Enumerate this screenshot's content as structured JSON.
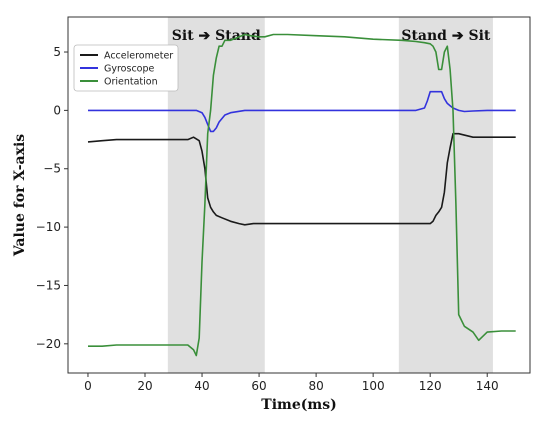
{
  "chart_data": {
    "type": "line",
    "xlabel": "Time(ms)",
    "ylabel": "Value for X-axis",
    "xlim": [
      -7,
      155
    ],
    "ylim": [
      -22.5,
      8
    ],
    "xticks": [
      0,
      20,
      40,
      60,
      80,
      100,
      120,
      140
    ],
    "yticks": [
      5,
      0,
      -5,
      -10,
      -15,
      -20
    ],
    "grid": false,
    "legend_position": "top-left",
    "colors": {
      "band": "#e0e0e0",
      "frame": "#333333"
    },
    "bands": [
      {
        "label": "Sit ➔ Stand",
        "x": [
          28,
          62
        ]
      },
      {
        "label": "Stand ➔ Sit",
        "x": [
          109,
          142
        ]
      }
    ],
    "series": [
      {
        "name": "Accelerometer",
        "color": "#1a1a1a",
        "x": [
          0,
          5,
          10,
          15,
          20,
          25,
          30,
          35,
          37,
          39,
          40,
          41,
          42,
          43,
          44,
          45,
          47,
          50,
          53,
          55,
          58,
          62,
          70,
          80,
          90,
          100,
          110,
          115,
          120,
          121,
          122,
          123,
          124,
          125,
          126,
          127,
          128,
          130,
          135,
          140,
          145,
          150
        ],
        "y": [
          -2.7,
          -2.6,
          -2.5,
          -2.5,
          -2.5,
          -2.5,
          -2.5,
          -2.5,
          -2.3,
          -2.6,
          -3.5,
          -5.0,
          -7.5,
          -8.3,
          -8.7,
          -9.0,
          -9.2,
          -9.5,
          -9.7,
          -9.8,
          -9.7,
          -9.7,
          -9.7,
          -9.7,
          -9.7,
          -9.7,
          -9.7,
          -9.7,
          -9.7,
          -9.5,
          -9.0,
          -8.7,
          -8.3,
          -7.0,
          -4.5,
          -3.2,
          -2.0,
          -2.0,
          -2.3,
          -2.3,
          -2.3,
          -2.3
        ]
      },
      {
        "name": "Gyroscope",
        "color": "#3333dd",
        "x": [
          0,
          10,
          20,
          30,
          38,
          40,
          41,
          42,
          43,
          44,
          45,
          46,
          48,
          50,
          55,
          62,
          80,
          100,
          110,
          115,
          118,
          119,
          120,
          122,
          124,
          125,
          126,
          127,
          128,
          130,
          132,
          135,
          140,
          150
        ],
        "y": [
          0,
          0,
          0,
          0,
          0,
          -0.2,
          -0.6,
          -1.2,
          -1.8,
          -1.8,
          -1.5,
          -1.0,
          -0.4,
          -0.2,
          0,
          0,
          0,
          0,
          0,
          0,
          0.2,
          0.8,
          1.6,
          1.6,
          1.6,
          1.0,
          0.6,
          0.4,
          0.2,
          0,
          -0.1,
          -0.05,
          0,
          0
        ]
      },
      {
        "name": "Orientation",
        "color": "#3a8f3a",
        "x": [
          0,
          5,
          10,
          20,
          30,
          35,
          37,
          38,
          39,
          40,
          41,
          42,
          43,
          44,
          45,
          46,
          47,
          48,
          50,
          52,
          55,
          57,
          60,
          62,
          65,
          70,
          80,
          90,
          100,
          110,
          115,
          118,
          120,
          121,
          122,
          123,
          124,
          125,
          126,
          127,
          128,
          129,
          130,
          132,
          135,
          137,
          140,
          145,
          150
        ],
        "y": [
          -20.2,
          -20.2,
          -20.1,
          -20.1,
          -20.1,
          -20.1,
          -20.5,
          -21.0,
          -19.5,
          -13.0,
          -8.0,
          -2.0,
          0,
          3.0,
          4.5,
          5.5,
          5.5,
          6.0,
          6.0,
          6.2,
          6.5,
          6.4,
          6.3,
          6.3,
          6.5,
          6.5,
          6.4,
          6.3,
          6.1,
          6.0,
          5.9,
          5.8,
          5.7,
          5.5,
          5.0,
          3.5,
          3.5,
          5.0,
          5.5,
          3.5,
          0,
          -8.0,
          -17.5,
          -18.5,
          -19.0,
          -19.7,
          -19.0,
          -18.9,
          -18.9
        ]
      }
    ]
  }
}
